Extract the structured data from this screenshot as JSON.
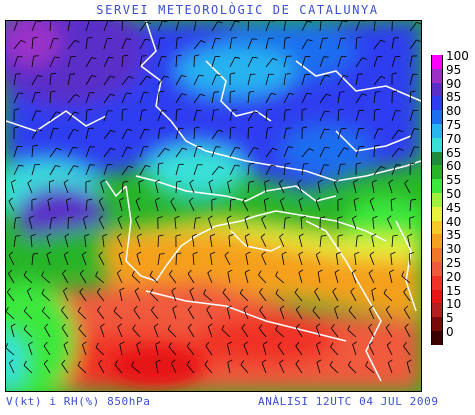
{
  "header": {
    "title": "SERVEI METEOROLÒGIC DE CATALUNYA"
  },
  "footer": {
    "left": "V(kt) i RH(%) 850hPa",
    "right": "ANÀLISI 12UTC 04 JUL 2009"
  },
  "legend": {
    "levels": [
      {
        "label": "100",
        "color": "#ff00ff"
      },
      {
        "label": "95",
        "color": "#9b30c8"
      },
      {
        "label": "90",
        "color": "#5a2ec8"
      },
      {
        "label": "85",
        "color": "#2d3ef0"
      },
      {
        "label": "80",
        "color": "#1a6ef0"
      },
      {
        "label": "75",
        "color": "#28b4f0"
      },
      {
        "label": "70",
        "color": "#38e0d8"
      },
      {
        "label": "65",
        "color": "#1e8c3c"
      },
      {
        "label": "60",
        "color": "#28b428"
      },
      {
        "label": "55",
        "color": "#3ce83c"
      },
      {
        "label": "50",
        "color": "#a0f03c"
      },
      {
        "label": "45",
        "color": "#e6f23c"
      },
      {
        "label": "40",
        "color": "#f5c828"
      },
      {
        "label": "35",
        "color": "#f5a01e"
      },
      {
        "label": "30",
        "color": "#f07828"
      },
      {
        "label": "25",
        "color": "#f05a3c"
      },
      {
        "label": "20",
        "color": "#f03228"
      },
      {
        "label": "15",
        "color": "#e61414"
      },
      {
        "label": "10",
        "color": "#b41e1e"
      },
      {
        "label": "5",
        "color": "#7a0a0a"
      },
      {
        "label": "0",
        "color": "#3c0000"
      }
    ]
  },
  "map": {
    "field": "relative humidity 850hPa with wind barbs",
    "colors": {
      "purple": "#5a2ec8",
      "blue": "#2d3ef0",
      "cyan": "#28b4f0",
      "green": "#28b428",
      "yellow": "#e6f23c",
      "orange": "#f5a01e",
      "red": "#f03228"
    }
  }
}
